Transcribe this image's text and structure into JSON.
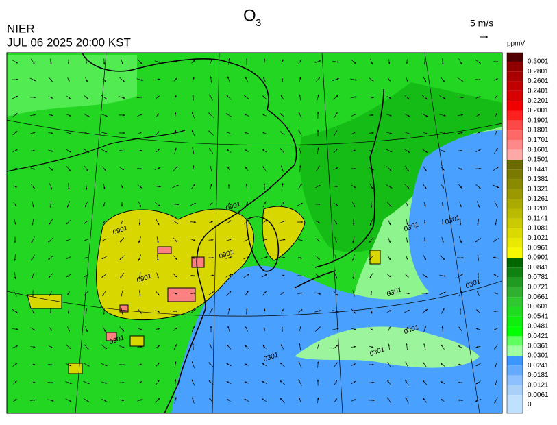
{
  "header": {
    "title": "O",
    "title_subscript": "3",
    "agency": "NIER",
    "datetime": "JUL 06 2025 20:00 KST",
    "wind_scale": "5 m/s"
  },
  "legend": {
    "unit": "ppmV",
    "labels": [
      "0.3001",
      "0.2801",
      "0.2601",
      "0.2401",
      "0.2201",
      "0.2001",
      "0.1901",
      "0.1801",
      "0.1701",
      "0.1601",
      "0.1501",
      "0.1441",
      "0.1381",
      "0.1321",
      "0.1261",
      "0.1201",
      "0.1141",
      "0.1081",
      "0.1021",
      "0.0961",
      "0.0901",
      "0.0841",
      "0.0781",
      "0.0721",
      "0.0661",
      "0.0601",
      "0.0541",
      "0.0481",
      "0.0421",
      "0.0361",
      "0.0301",
      "0.0241",
      "0.0181",
      "0.0121",
      "0.0061",
      "0"
    ],
    "colors": [
      "#700000",
      "#900000",
      "#a80000",
      "#c00000",
      "#d80000",
      "#f00000",
      "#ff2020",
      "#ff4848",
      "#ff6868",
      "#ff8888",
      "#ffa8a8",
      "#6a6a00",
      "#7a7a00",
      "#8a8a00",
      "#9a9a00",
      "#aaaa00",
      "#baba00",
      "#caca00",
      "#dada00",
      "#eaea00",
      "#f8f800",
      "#006600",
      "#108010",
      "#209a20",
      "#30b030",
      "#30c830",
      "#20dc20",
      "#10ee10",
      "#00ff00",
      "#60ff60",
      "#a0ffa0",
      "#3c96ff",
      "#64aaff",
      "#8cc0ff",
      "#a8d0f8",
      "#c0e0ff"
    ],
    "top_color": "#500000"
  },
  "contour_labels": [
    "0901",
    "0901",
    "0901",
    "0901",
    "0301",
    "0301",
    "0301",
    "0301",
    "0301",
    "0301",
    "0301",
    "0301"
  ]
}
